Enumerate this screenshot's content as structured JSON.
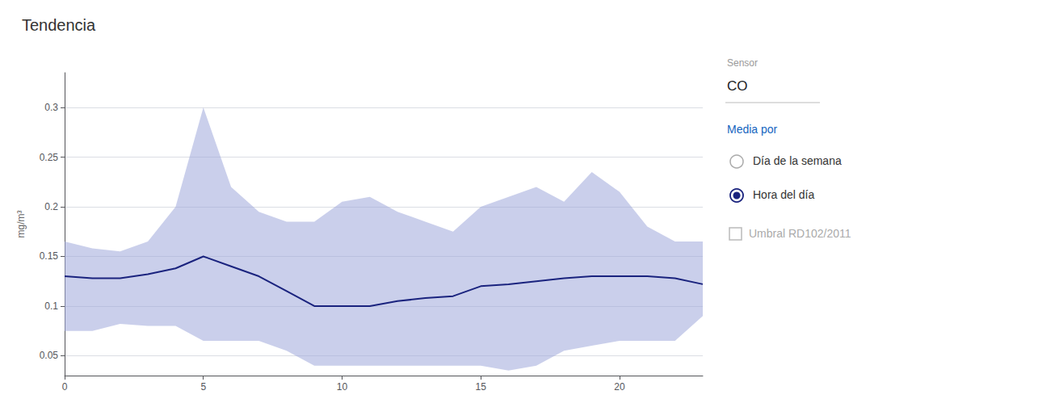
{
  "chart_data": {
    "type": "line",
    "title": "Tendencia",
    "ylabel": "mg/m³",
    "x": [
      0,
      1,
      2,
      3,
      4,
      5,
      6,
      7,
      8,
      9,
      10,
      11,
      12,
      13,
      14,
      15,
      16,
      17,
      18,
      19,
      20,
      21,
      22,
      23
    ],
    "series": [
      {
        "type": "band",
        "color": "#9fa8da",
        "upper": [
          0.165,
          0.158,
          0.155,
          0.165,
          0.2,
          0.3,
          0.22,
          0.195,
          0.185,
          0.185,
          0.205,
          0.21,
          0.195,
          0.185,
          0.175,
          0.2,
          0.21,
          0.22,
          0.205,
          0.235,
          0.215,
          0.18,
          0.165,
          0.165
        ],
        "lower": [
          0.075,
          0.075,
          0.082,
          0.08,
          0.08,
          0.065,
          0.065,
          0.065,
          0.055,
          0.04,
          0.04,
          0.04,
          0.04,
          0.04,
          0.04,
          0.04,
          0.035,
          0.04,
          0.055,
          0.06,
          0.065,
          0.065,
          0.065,
          0.09
        ]
      },
      {
        "type": "line",
        "color": "#1a237e",
        "values": [
          0.13,
          0.128,
          0.128,
          0.132,
          0.138,
          0.15,
          0.14,
          0.13,
          0.115,
          0.1,
          0.1,
          0.1,
          0.105,
          0.108,
          0.11,
          0.12,
          0.122,
          0.125,
          0.128,
          0.13,
          0.13,
          0.13,
          0.128,
          0.122
        ]
      }
    ],
    "xlim": [
      0,
      23
    ],
    "xticks": [
      0,
      5,
      10,
      15,
      20
    ],
    "ylim": [
      0.03,
      0.335
    ],
    "yticks": [
      0.05,
      0.1,
      0.15,
      0.2,
      0.25,
      0.3
    ],
    "grid": true,
    "annotations": [
      "Sensor",
      "CO",
      "Media por",
      "Día de la semana",
      "Hora del día",
      "Umbral RD102/2011"
    ]
  }
}
